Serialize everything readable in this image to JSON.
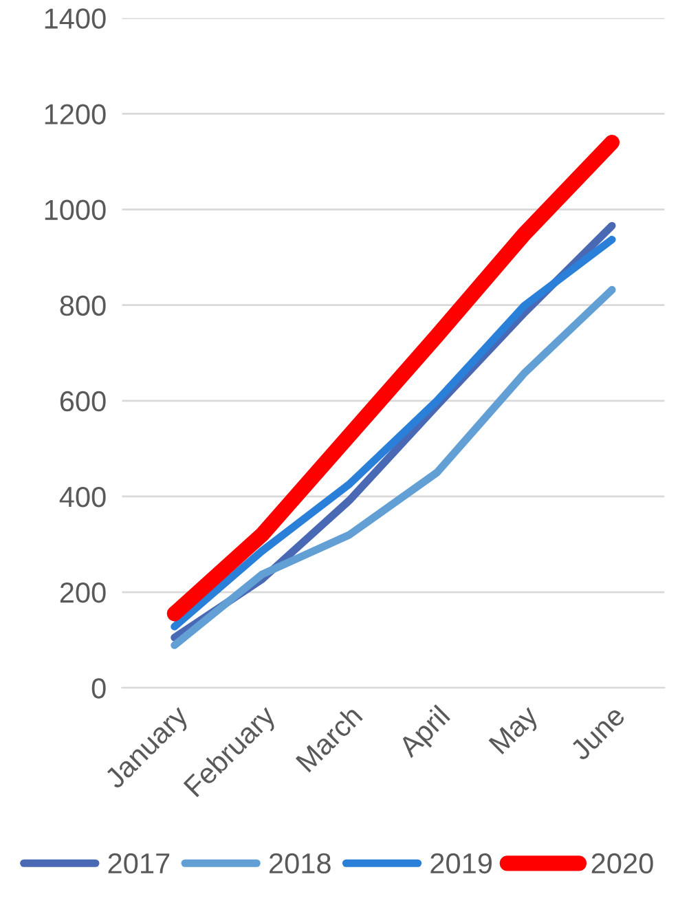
{
  "chart_data": {
    "type": "line",
    "categories": [
      "January",
      "February",
      "March",
      "April",
      "May",
      "June"
    ],
    "series": [
      {
        "name": "2017",
        "color": "#4a69b4",
        "values": [
          105,
          227,
          392,
          590,
          784,
          966
        ]
      },
      {
        "name": "2018",
        "color": "#629fd4",
        "values": [
          89,
          237,
          320,
          450,
          658,
          832
        ]
      },
      {
        "name": "2019",
        "color": "#2a7fd8",
        "values": [
          128,
          286,
          426,
          600,
          799,
          937
        ]
      },
      {
        "name": "2020",
        "color": "#ff0000",
        "values": [
          155,
          320,
          528,
          736,
          949,
          1140
        ]
      }
    ],
    "ylim": [
      0,
      1400
    ],
    "yticks": [
      0,
      200,
      400,
      600,
      800,
      1000,
      1200,
      1400
    ],
    "grid": "y",
    "legend": "bottom",
    "marker": "none",
    "line_style": "solid"
  }
}
